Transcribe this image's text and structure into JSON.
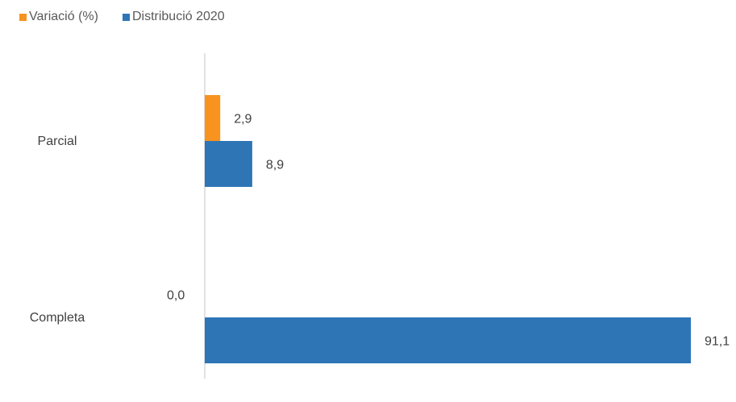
{
  "chart_data": {
    "type": "bar",
    "orientation": "horizontal",
    "categories": [
      "Parcial",
      "Completa"
    ],
    "series": [
      {
        "name": "Variació (%)",
        "values": [
          2.9,
          0.0
        ],
        "labels": [
          "2,9",
          "0,0"
        ],
        "color": "#F7931E"
      },
      {
        "name": "Distribució 2020",
        "values": [
          8.9,
          91.1
        ],
        "labels": [
          "8,9",
          "91,1"
        ],
        "color": "#2E75B6"
      }
    ],
    "legend_position": "top-left",
    "grid": false,
    "xlim": [
      0,
      91.1
    ]
  }
}
